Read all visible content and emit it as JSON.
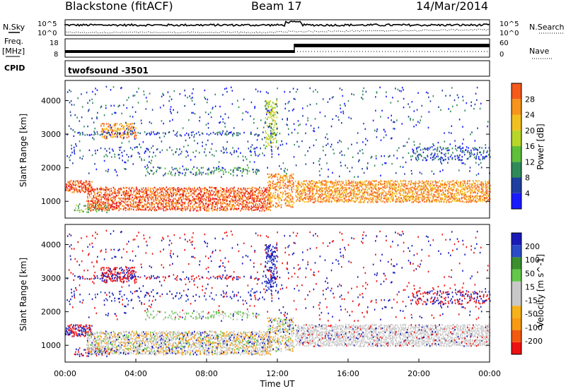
{
  "header": {
    "title": "Blackstone (fitACF)",
    "beam": "Beam 17",
    "date": "14/Mar/2014"
  },
  "left_labels": {
    "nsky": "N.Sky",
    "freq": "Freq.",
    "freq_unit": "[MHz]",
    "cpid": "CPID"
  },
  "right_labels": {
    "nsearch": "N.Search",
    "nave": "Nave"
  },
  "cpid_name": "twofsound  -3501",
  "colors": {
    "power_scale": [
      "#1a1aff",
      "#1e3fa0",
      "#2f8a5a",
      "#5fbf3a",
      "#b8d62a",
      "#f0c020",
      "#f7941d",
      "#f55a1a",
      "#e81010"
    ],
    "velocity_scale": [
      "#ee1111",
      "#f25a10",
      "#f79a12",
      "#f6b21a",
      "#c8c8c8",
      "#c8c8c8",
      "#63c74a",
      "#3b8f2e",
      "#2b4cc8",
      "#1a1ab8"
    ]
  },
  "chart_data": [
    {
      "type": "line",
      "name": "noise-panel",
      "left_label": "N.Sky",
      "right_label": "N.Search",
      "left_ticks": [
        "10^5",
        "10^0"
      ],
      "right_ticks": [
        "10^5",
        "10^0"
      ],
      "ylim": [
        0,
        5
      ],
      "scale": "log"
    },
    {
      "type": "line",
      "name": "freq-nave-panel",
      "left_ticks": [
        "18",
        "8"
      ],
      "right_ticks": [
        "60",
        "0"
      ],
      "series": [
        {
          "values_time": [
            0,
            13,
            13,
            24
          ],
          "values": [
            10,
            10,
            15,
            15
          ]
        }
      ],
      "ylim": [
        8,
        18
      ]
    },
    {
      "type": "heatmap",
      "name": "power-panel",
      "ylabel": "Slant Range [km]",
      "yticks": [
        1000,
        2000,
        3000,
        4000
      ],
      "ylim": [
        500,
        4600
      ],
      "xlim": [
        0,
        24
      ],
      "colorbar": {
        "label": "Power [dB]",
        "ticks": [
          4,
          8,
          12,
          16,
          20,
          24,
          28
        ]
      }
    },
    {
      "type": "heatmap",
      "name": "velocity-panel",
      "ylabel": "Slant Range [km]",
      "xlabel": "Time UT",
      "yticks": [
        1000,
        2000,
        3000,
        4000
      ],
      "ylim": [
        500,
        4600
      ],
      "xlim": [
        0,
        24
      ],
      "xticks": [
        "00:00",
        "04:00",
        "08:00",
        "12:00",
        "16:00",
        "20:00",
        "00:00"
      ],
      "colorbar": {
        "label": "Velocity [m s^-1]",
        "ticks": [
          -200,
          -100,
          -50,
          -15,
          15,
          50,
          100,
          200
        ]
      }
    }
  ]
}
